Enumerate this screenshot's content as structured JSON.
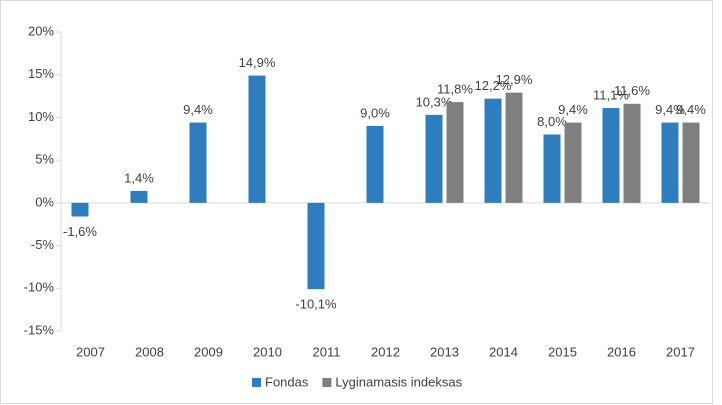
{
  "chart_data": {
    "type": "bar",
    "categories": [
      "2007",
      "2008",
      "2009",
      "2010",
      "2011",
      "2012",
      "2013",
      "2014",
      "2015",
      "2016",
      "2017"
    ],
    "series": [
      {
        "name": "Fondas",
        "color": "#2e7ebf",
        "values": [
          -1.6,
          1.4,
          9.4,
          14.9,
          -10.1,
          9.0,
          10.3,
          12.2,
          8.0,
          11.1,
          9.4
        ],
        "value_labels": [
          "-1,6%",
          "1,4%",
          "9,4%",
          "14,9%",
          "-10,1%",
          "9,0%",
          "10,3%",
          "12,2%",
          "8,0%",
          "11,1%",
          "9,4%"
        ]
      },
      {
        "name": "Lyginamasis indeksas",
        "color": "#7f7f7f",
        "values": [
          null,
          null,
          null,
          null,
          null,
          null,
          11.8,
          12.9,
          9.4,
          11.6,
          9.4
        ],
        "value_labels": [
          null,
          null,
          null,
          null,
          null,
          null,
          "11,8%",
          "12,9%",
          "9,4%",
          "11,6%",
          "9,4%"
        ]
      }
    ],
    "ylim": [
      -15,
      20
    ],
    "yticks": [
      {
        "value": -15,
        "label": "-15%"
      },
      {
        "value": -10,
        "label": "-10%"
      },
      {
        "value": -5,
        "label": "-5%"
      },
      {
        "value": 0,
        "label": "0%"
      },
      {
        "value": 5,
        "label": "5%"
      },
      {
        "value": 10,
        "label": "10%"
      },
      {
        "value": 15,
        "label": "15%"
      },
      {
        "value": 20,
        "label": "20%"
      }
    ],
    "grid": false,
    "legend": "bottom"
  }
}
